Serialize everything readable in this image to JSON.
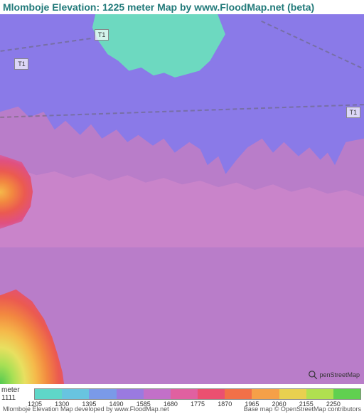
{
  "title": "Mlomboje Elevation: 1225 meter Map by www.FloodMap.net (beta)",
  "map": {
    "road_labels": [
      "T1",
      "T1",
      "T1"
    ],
    "osm_text": "penStreetMap"
  },
  "legend": {
    "unit_label": "meter 1111",
    "ticks": [
      "1205",
      "1300",
      "1395",
      "1490",
      "1585",
      "1680",
      "1775",
      "1870",
      "1965",
      "2060",
      "2155",
      "2250"
    ],
    "colors": [
      "#5fd7c8",
      "#68c4e0",
      "#7a9ae8",
      "#9a7ae0",
      "#c270c8",
      "#e060a0",
      "#eb5070",
      "#f27048",
      "#f5a048",
      "#e8d050",
      "#b0e050",
      "#60d050"
    ]
  },
  "footer": {
    "left": "Mlomboje Elevation Map developed by www.FloodMap.net",
    "right": "Base map © OpenStreetMap contributors"
  },
  "styling": {
    "title_color": "#227a7a",
    "title_fontsize": 14,
    "map_width": 512,
    "map_height": 520,
    "terrain_colors": {
      "base_purple": "#b97dc9",
      "blue": "#8a7ae8",
      "cyan": "#6dd9c0",
      "pink": "#d488cc"
    }
  }
}
